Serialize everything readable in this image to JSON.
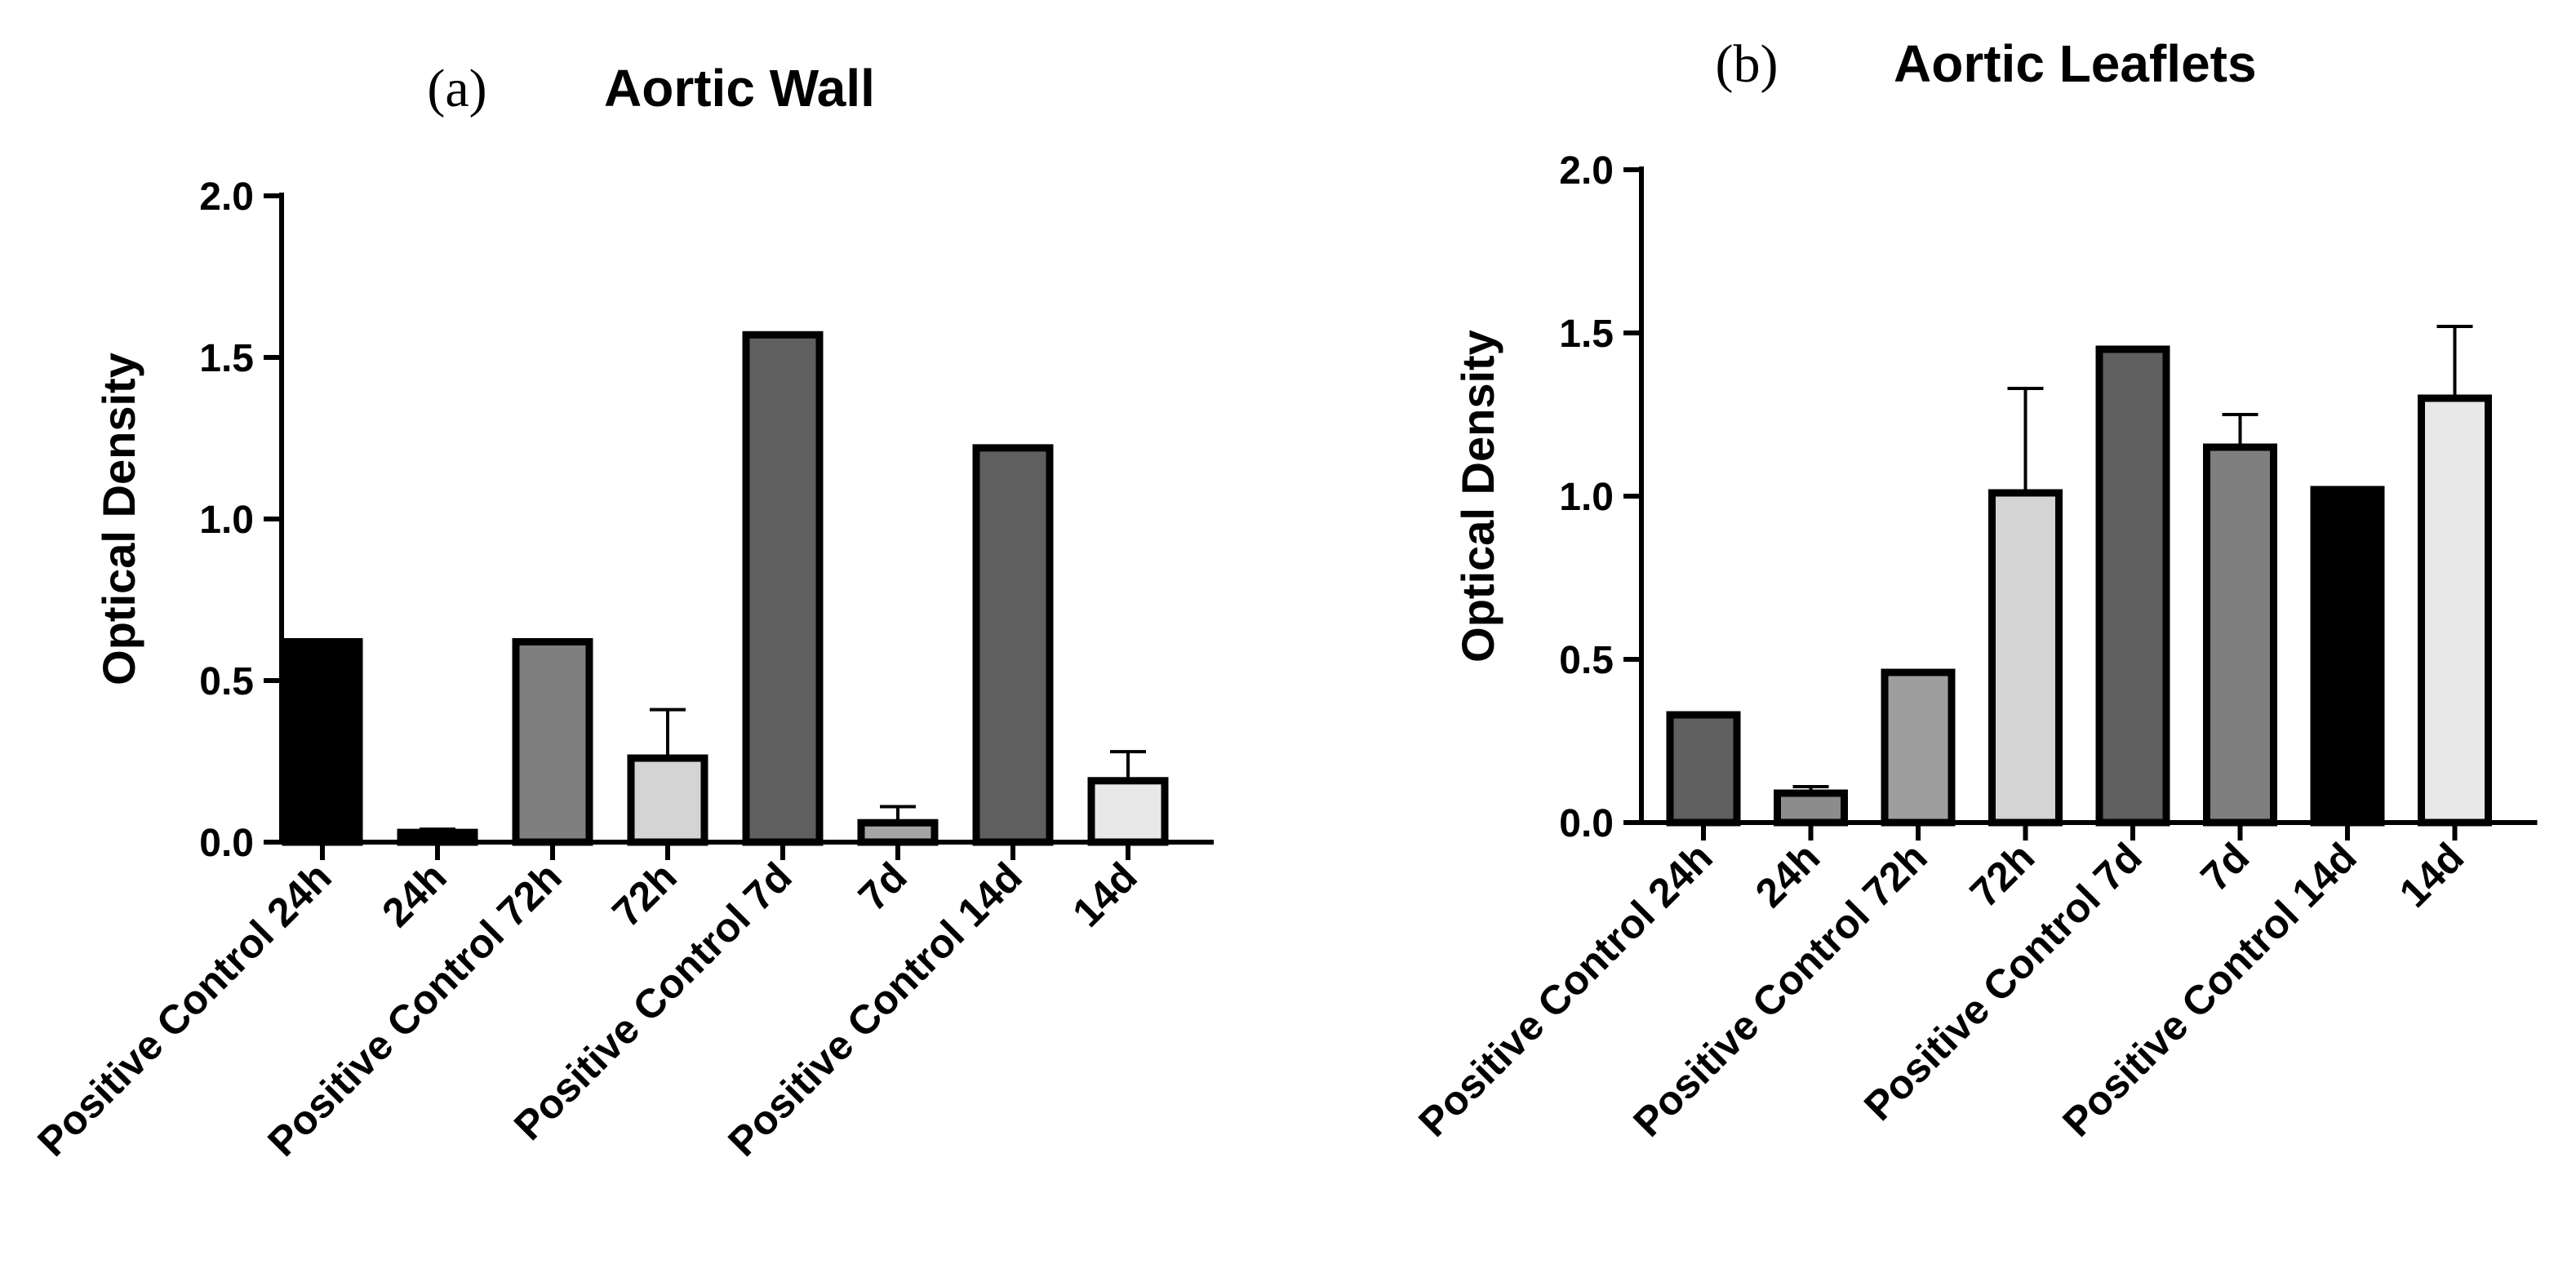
{
  "chart_data": [
    {
      "type": "bar",
      "panel_label": "(a)",
      "title": "Aortic Wall",
      "xlabel": "",
      "ylabel": "Optical Density",
      "ylim": [
        0,
        2.0
      ],
      "yticks": [
        "0.0",
        "0.5",
        "1.0",
        "1.5",
        "2.0"
      ],
      "categories": [
        "Positive Control 24h",
        "24h",
        "Positive Control 72h",
        "72h",
        "Positive Control 7d",
        "7d",
        "Positive Control 14d",
        "14d"
      ],
      "values": [
        0.62,
        0.03,
        0.62,
        0.26,
        1.57,
        0.06,
        1.22,
        0.19
      ],
      "error_upper": [
        0,
        0.01,
        0,
        0.15,
        0,
        0.05,
        0,
        0.09
      ],
      "colors": [
        "#000000",
        "#000000",
        "#7f7f7f",
        "#d4d4d4",
        "#5f5f5f",
        "#a5a5a5",
        "#5f5f5f",
        "#e8e8e8"
      ],
      "grid": false,
      "legend": "none"
    },
    {
      "type": "bar",
      "panel_label": "(b)",
      "title": "Aortic Leaflets",
      "xlabel": "",
      "ylabel": "Optical Density",
      "ylim": [
        0,
        2.0
      ],
      "yticks": [
        "0.0",
        "0.5",
        "1.0",
        "1.5",
        "2.0"
      ],
      "categories": [
        "Positive Control 24h",
        "24h",
        "Positive Control 72h",
        "72h",
        "Positive Control 7d",
        "7d",
        "Positive Control 14d",
        "14d"
      ],
      "values": [
        0.33,
        0.09,
        0.46,
        1.01,
        1.45,
        1.15,
        1.02,
        1.3
      ],
      "error_upper": [
        0,
        0.02,
        0,
        0.32,
        0,
        0.1,
        0,
        0.22
      ],
      "colors": [
        "#5f5f5f",
        "#8c8c8c",
        "#9e9e9e",
        "#d4d4d4",
        "#5f5f5f",
        "#7f7f7f",
        "#000000",
        "#e8e8e8"
      ],
      "grid": false,
      "legend": "none"
    }
  ]
}
